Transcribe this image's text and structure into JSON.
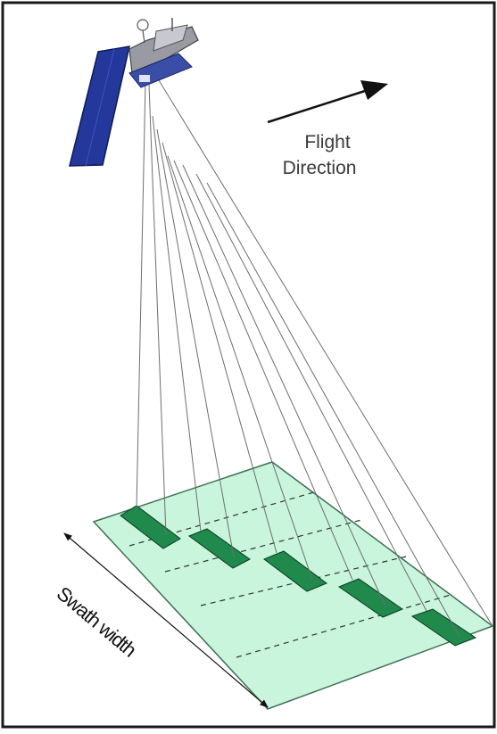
{
  "diagram": {
    "flight_label_line1": "Flight",
    "flight_label_line2": "Direction",
    "swath_label": "Swath width"
  },
  "colors": {
    "frame": "#1a1a1a",
    "ground": "#c8f5dc",
    "footprint": "#1f8a4c",
    "beam": "#6e6e6e",
    "solar_panel": "#23389a",
    "satellite_body": "#9a9aa2",
    "arrow": "#111111"
  },
  "icons": {
    "satellite": "satellite-icon",
    "flight_arrow": "arrow-right-up-icon"
  }
}
